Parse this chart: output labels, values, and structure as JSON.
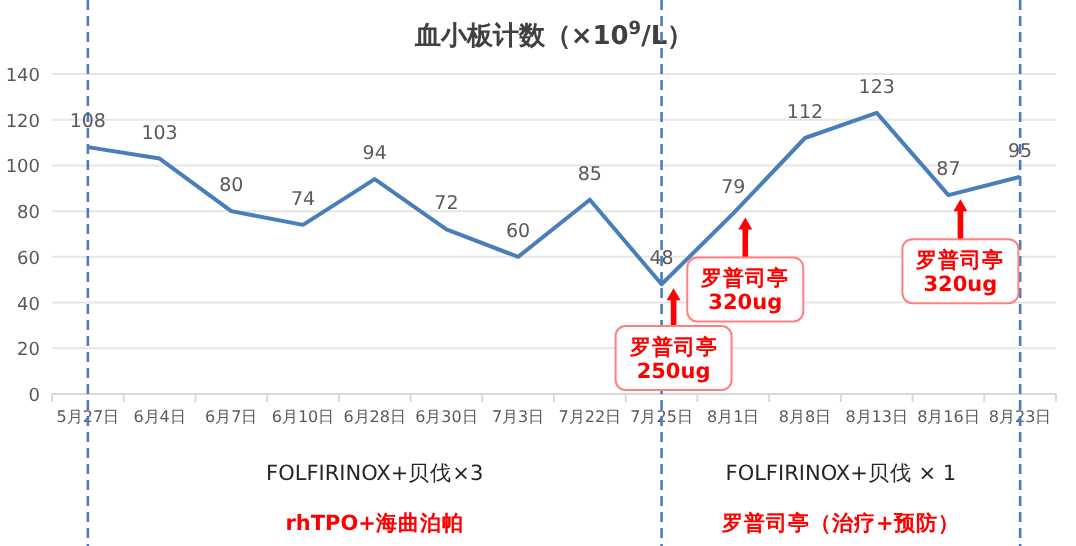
{
  "chart_data": {
    "type": "line",
    "title": "血小板计数（×10$^{9}$/L）",
    "categories": [
      "5月27日",
      "6月4日",
      "6月7日",
      "6月10日",
      "6月28日",
      "6月30日",
      "7月3日",
      "7月22日",
      "7月25日",
      "8月1日",
      "8月8日",
      "8月13日",
      "8月16日",
      "8月23日"
    ],
    "values": [
      108,
      103,
      80,
      74,
      94,
      72,
      60,
      85,
      48,
      79,
      112,
      123,
      87,
      95
    ],
    "color": "#4a7ebb",
    "ylim": [
      0,
      140
    ],
    "yticks": [
      0,
      20,
      40,
      60,
      80,
      100,
      120,
      140
    ],
    "grid": "y",
    "data_labels": true,
    "marker": "none",
    "line_style": "solid",
    "ref_lines": [
      {
        "axis": "x",
        "value": "5月27日",
        "color": "#4a7ebb",
        "line_style": "dashed"
      },
      {
        "axis": "x",
        "value": "7月25日",
        "color": "#4a7ebb",
        "line_style": "dashed"
      },
      {
        "axis": "x",
        "value": "8月23日",
        "color": "#4a7ebb",
        "line_style": "dashed"
      }
    ],
    "annotations": [
      {
        "text": "罗普司亭\n250ug",
        "x": "7月25日",
        "y": 48
      },
      {
        "text": "罗普司亭\n320ug",
        "x": "8月1日",
        "y": 79
      },
      {
        "text": "罗普司亭\n320ug",
        "x": "8月16日",
        "y": 87
      },
      "FOLFIRINOX+贝伐×3",
      "FOLFIRINOX+贝伐 × 1",
      "rhTPO+海曲泊帕",
      "罗普司亭（治疗+预防）"
    ]
  }
}
